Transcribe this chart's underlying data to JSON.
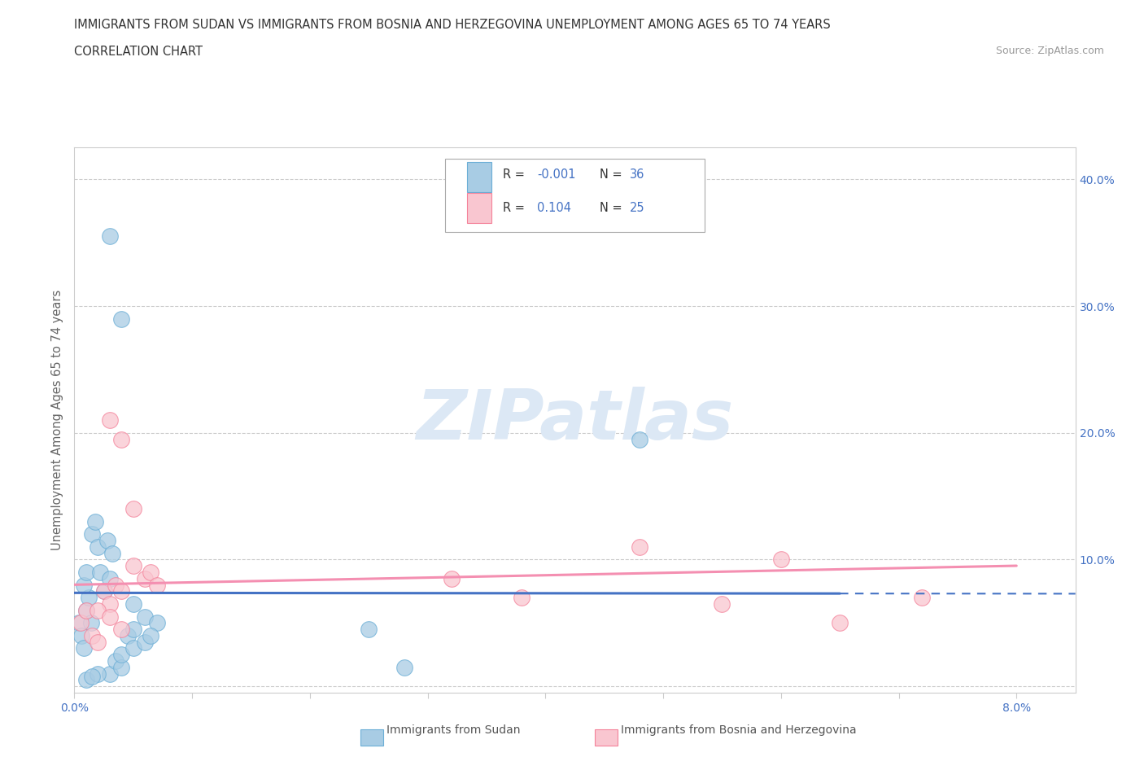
{
  "title_line1": "IMMIGRANTS FROM SUDAN VS IMMIGRANTS FROM BOSNIA AND HERZEGOVINA UNEMPLOYMENT AMONG AGES 65 TO 74 YEARS",
  "title_line2": "CORRELATION CHART",
  "source_text": "Source: ZipAtlas.com",
  "ylabel": "Unemployment Among Ages 65 to 74 years",
  "xlim": [
    0.0,
    0.085
  ],
  "ylim": [
    -0.005,
    0.425
  ],
  "xticks": [
    0.0,
    0.01,
    0.02,
    0.03,
    0.04,
    0.05,
    0.06,
    0.07,
    0.08
  ],
  "yticks": [
    0.0,
    0.1,
    0.2,
    0.3,
    0.4
  ],
  "sudan_R": -0.001,
  "sudan_N": 36,
  "bosnia_R": 0.104,
  "bosnia_N": 25,
  "sudan_color": "#a8cce4",
  "sudan_edge_color": "#6baed6",
  "bosnia_color": "#f9c6d0",
  "bosnia_edge_color": "#f4829a",
  "sudan_scatter_x": [
    0.0004,
    0.0006,
    0.0008,
    0.001,
    0.0012,
    0.0014,
    0.0008,
    0.001,
    0.0015,
    0.002,
    0.0018,
    0.0022,
    0.0025,
    0.003,
    0.0028,
    0.0032,
    0.003,
    0.0035,
    0.004,
    0.004,
    0.0045,
    0.005,
    0.005,
    0.006,
    0.006,
    0.007,
    0.0065,
    0.003,
    0.004,
    0.005,
    0.001,
    0.002,
    0.0015,
    0.048,
    0.025,
    0.028
  ],
  "sudan_scatter_y": [
    0.05,
    0.04,
    0.03,
    0.06,
    0.07,
    0.05,
    0.08,
    0.09,
    0.12,
    0.11,
    0.13,
    0.09,
    0.075,
    0.085,
    0.115,
    0.105,
    0.01,
    0.02,
    0.015,
    0.025,
    0.04,
    0.045,
    0.03,
    0.035,
    0.055,
    0.05,
    0.04,
    0.355,
    0.29,
    0.065,
    0.005,
    0.01,
    0.008,
    0.195,
    0.045,
    0.015
  ],
  "bosnia_scatter_x": [
    0.0005,
    0.001,
    0.0015,
    0.002,
    0.0025,
    0.003,
    0.0035,
    0.004,
    0.005,
    0.006,
    0.0065,
    0.007,
    0.003,
    0.004,
    0.032,
    0.038,
    0.002,
    0.003,
    0.004,
    0.005,
    0.06,
    0.065,
    0.072,
    0.055,
    0.048
  ],
  "bosnia_scatter_y": [
    0.05,
    0.06,
    0.04,
    0.035,
    0.075,
    0.065,
    0.08,
    0.075,
    0.095,
    0.085,
    0.09,
    0.08,
    0.21,
    0.195,
    0.085,
    0.07,
    0.06,
    0.055,
    0.045,
    0.14,
    0.1,
    0.05,
    0.07,
    0.065,
    0.11
  ],
  "watermark_text": "ZIPatlas",
  "watermark_color": "#dce8f5",
  "background_color": "#ffffff",
  "grid_color": "#cccccc",
  "trendline_sudan_color": "#4472c4",
  "trendline_bosnia_color": "#f48fb1",
  "legend_text_color": "#4472c4",
  "legend_label_color": "#333333"
}
